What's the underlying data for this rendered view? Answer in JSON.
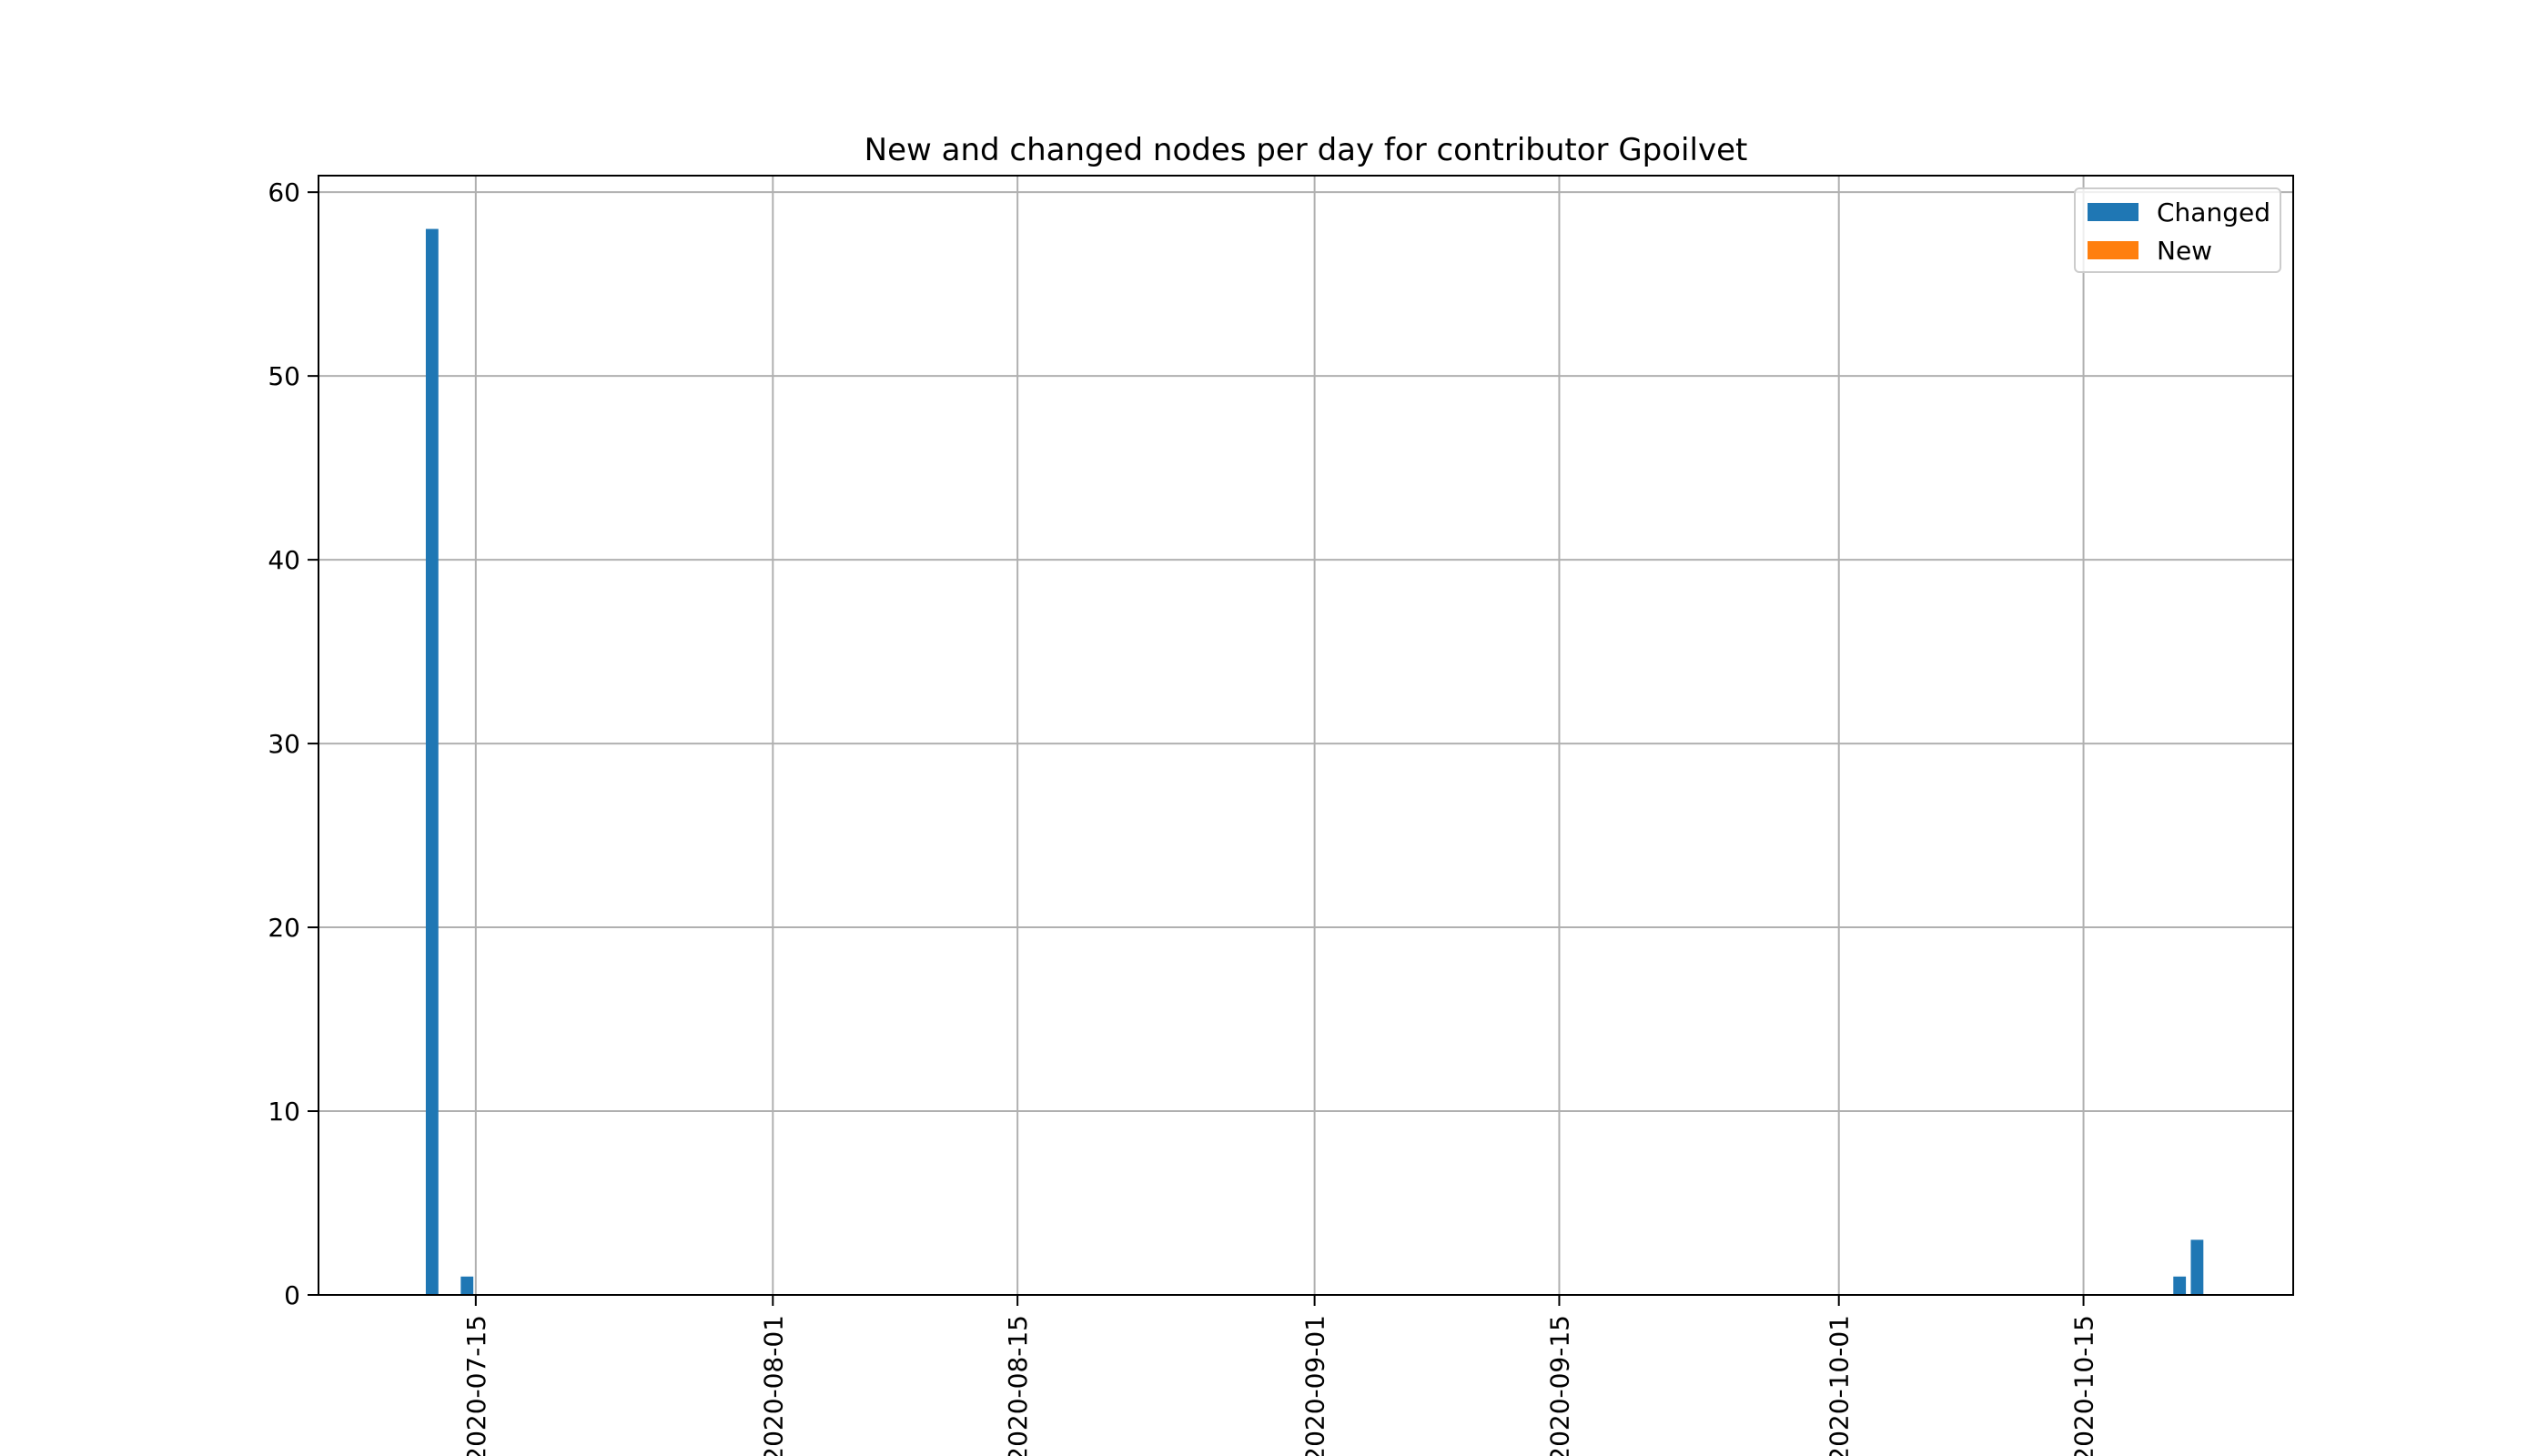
{
  "chart_data": {
    "type": "bar",
    "title": "New and changed nodes per day for contributor Gpoilvet",
    "xlabel": "",
    "ylabel": "",
    "x_type": "date",
    "xlim": [
      "2020-07-06",
      "2020-10-27"
    ],
    "ylim": [
      0,
      60.9
    ],
    "x_ticks": [
      "2020-07-15",
      "2020-08-01",
      "2020-08-15",
      "2020-09-01",
      "2020-09-15",
      "2020-10-01",
      "2020-10-15"
    ],
    "y_ticks": [
      0,
      10,
      20,
      30,
      40,
      50,
      60
    ],
    "grid": true,
    "legend_position": "top-right",
    "colors": {
      "Changed": "#1f77b4",
      "New": "#ff7f0e"
    },
    "series": [
      {
        "name": "Changed",
        "points": [
          {
            "x": "2020-07-12",
            "y": 58
          },
          {
            "x": "2020-07-14",
            "y": 1
          },
          {
            "x": "2020-10-20",
            "y": 1
          },
          {
            "x": "2020-10-21",
            "y": 3
          }
        ]
      },
      {
        "name": "New",
        "points": [
          {
            "x": "2020-07-12",
            "y": 0
          },
          {
            "x": "2020-07-14",
            "y": 0
          },
          {
            "x": "2020-10-20",
            "y": 0
          },
          {
            "x": "2020-10-21",
            "y": 0
          }
        ]
      }
    ]
  }
}
